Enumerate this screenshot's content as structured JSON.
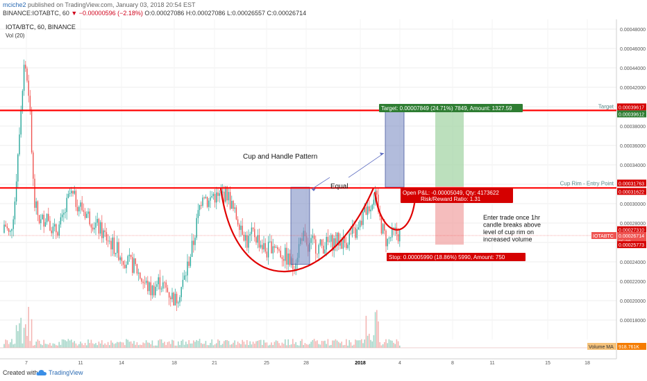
{
  "header": {
    "publisher": "mciche2",
    "published_text": "published on TradingView.com, January 03, 2018 20:54 EST",
    "symbol_line": "BINANCE:IOTABTC, 60",
    "change_text": "▼ −0.00000596 (−2.18%)",
    "ohlc_text": "O:0.00027086 H:0.00027086 L:0.00026557 C:0.00026714"
  },
  "legend": {
    "title": "IOTA/BTC, 60, BINANCE",
    "indicator": "Vol (20)"
  },
  "footer": {
    "created_with": "Created with",
    "brand": "TradingView"
  },
  "colors": {
    "up": "#26a69a",
    "down": "#ef5350",
    "line": "#ff0000",
    "grid": "#f0f0f0",
    "target_box": "#2e7d32",
    "stop_box": "#d50000"
  },
  "annotations": {
    "pattern": "Cup and Handle Pattern",
    "equal": "Equal",
    "note_lines": [
      "Enter trade once 1hr",
      "candle breaks above",
      "level of cup rim on",
      "increased volume"
    ],
    "target_label": "Target: 0.00007849 (24.71%) 7849, Amount: 1327.59",
    "open_pl_label": "Open P&L: -0.00005049, Qty: 4173622",
    "risk_reward_label": "Risk/Reward Ratio: 1.31",
    "stop_label": "Stop: 0.00005990 (18.86%) 5990, Amount: 750",
    "target_line_label": "Target",
    "cup_rim_label": "Cup Rim - Entry Point"
  },
  "price_badges": [
    {
      "price": 0.00039617,
      "text": "0.00039617",
      "color": "#d50000"
    },
    {
      "price": 0.00039612,
      "text": "0.00039612",
      "color": "#2e7d32"
    },
    {
      "price": 0.00031763,
      "text": "0.00031763",
      "color": "#d50000"
    },
    {
      "price": 0.00031622,
      "text": "0.00031622",
      "color": "#d50000"
    },
    {
      "price": 0.0002731,
      "text": "0.00027310",
      "color": "#d50000"
    },
    {
      "price": 0.00026714,
      "text": "0.00026714",
      "color": "#ef5350",
      "tag": "IOTABTC"
    },
    {
      "price": 0.000261,
      "text": "05:38",
      "color": "#ef5350"
    },
    {
      "price": 0.00025773,
      "text": "0.00025773",
      "color": "#d50000"
    }
  ],
  "volume_badge": {
    "text": "918.761K",
    "label": "Volume MA",
    "color": "#f57c00"
  },
  "chart_data": {
    "type": "candlestick",
    "title": "IOTA/BTC, 60, BINANCE",
    "ylim": [
      0.00016,
      0.00049
    ],
    "y_ticks": [
      "0.00048000",
      "0.00046000",
      "0.00044000",
      "0.00042000",
      "0.00040000",
      "0.00038000",
      "0.00036000",
      "0.00034000",
      "0.00032000",
      "0.00030000",
      "0.00028000",
      "0.00026000",
      "0.00024000",
      "0.00022000",
      "0.00020000",
      "0.00018000"
    ],
    "x_ticks": [
      "7",
      "11",
      "14",
      "18",
      "21",
      "25",
      "28",
      "2018",
      "4",
      "8",
      "11",
      "15",
      "18"
    ],
    "horizontal_lines": [
      {
        "name": "Target",
        "price": 0.00039617
      },
      {
        "name": "Cup Rim - Entry Point",
        "price": 0.00031622
      }
    ],
    "price_path": [
      [
        0.0,
        0.00027
      ],
      [
        0.3,
        0.00028
      ],
      [
        0.6,
        0.000265
      ],
      [
        0.9,
        0.0003
      ],
      [
        1.2,
        0.00038
      ],
      [
        1.5,
        0.00045
      ],
      [
        1.8,
        0.00041
      ],
      [
        2.1,
        0.0003
      ],
      [
        2.5,
        0.00028
      ],
      [
        2.9,
        0.00029
      ],
      [
        3.3,
        0.00027
      ],
      [
        3.8,
        0.00028
      ],
      [
        4.3,
        0.00031
      ],
      [
        4.8,
        0.0003
      ],
      [
        5.3,
        0.00029
      ],
      [
        5.8,
        0.00028
      ],
      [
        6.3,
        0.00027
      ],
      [
        6.8,
        0.00026
      ],
      [
        7.3,
        0.00025
      ],
      [
        7.8,
        0.00024
      ],
      [
        8.3,
        0.000235
      ],
      [
        8.8,
        0.00022
      ],
      [
        9.3,
        0.00021
      ],
      [
        9.8,
        0.00022
      ],
      [
        10.3,
        0.00021
      ],
      [
        10.8,
        0.0002
      ],
      [
        11.3,
        0.00022
      ],
      [
        11.6,
        0.00024
      ],
      [
        11.9,
        0.00026
      ],
      [
        12.2,
        0.00029
      ],
      [
        12.5,
        0.000315
      ],
      [
        12.8,
        0.0003
      ],
      [
        13.1,
        0.00031
      ],
      [
        13.4,
        0.000305
      ],
      [
        13.7,
        0.00031
      ],
      [
        14.0,
        0.00031
      ],
      [
        14.4,
        0.00029
      ],
      [
        14.8,
        0.00028
      ],
      [
        15.2,
        0.00026
      ],
      [
        15.6,
        0.00027
      ],
      [
        16.0,
        0.00026
      ],
      [
        16.4,
        0.00025
      ],
      [
        16.8,
        0.00026
      ],
      [
        17.2,
        0.00025
      ],
      [
        17.6,
        0.000245
      ],
      [
        18.0,
        0.000235
      ],
      [
        18.3,
        0.00025
      ],
      [
        18.6,
        0.00027
      ],
      [
        18.9,
        0.00025
      ],
      [
        19.2,
        0.00026
      ],
      [
        19.6,
        0.000255
      ],
      [
        20.0,
        0.000258
      ],
      [
        20.4,
        0.00026
      ],
      [
        20.8,
        0.000262
      ],
      [
        21.2,
        0.00026
      ],
      [
        21.6,
        0.000268
      ],
      [
        22.0,
        0.00027
      ],
      [
        22.4,
        0.00029
      ],
      [
        22.8,
        0.0003
      ],
      [
        23.0,
        0.00031
      ],
      [
        23.2,
        0.0003
      ],
      [
        23.4,
        0.00028
      ],
      [
        23.6,
        0.00027
      ],
      [
        23.8,
        0.00026
      ],
      [
        24.0,
        0.000265
      ],
      [
        24.3,
        0.00027
      ],
      [
        24.6,
        0.000268
      ]
    ],
    "positions": [
      {
        "type": "long",
        "entry": 0.00031763,
        "target": 0.00039612,
        "stop": 0.00025773
      }
    ]
  }
}
